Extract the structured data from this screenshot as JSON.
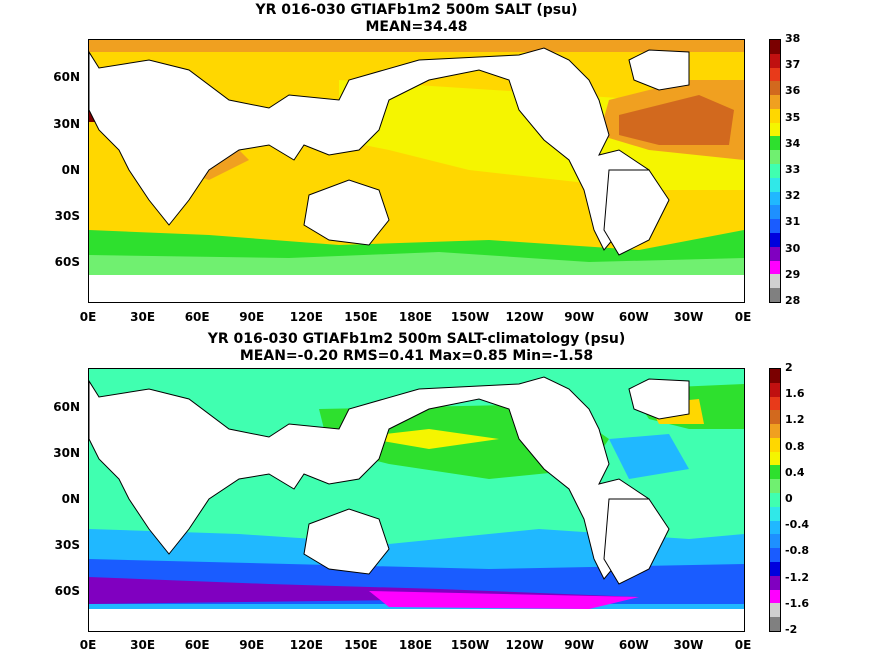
{
  "top": {
    "title_line1": "YR 016-030 GTIAFb1m2 500m SALT (psu)",
    "title_line2": "MEAN=34.48",
    "y_ticks": [
      "60N",
      "30N",
      "0N",
      "30S",
      "60S"
    ],
    "x_ticks": [
      "0E",
      "30E",
      "60E",
      "90E",
      "120E",
      "150E",
      "180E",
      "150W",
      "120W",
      "90W",
      "60W",
      "30W",
      "0E"
    ],
    "colorbar_labels": [
      "38",
      "37",
      "36",
      "35",
      "34",
      "33",
      "32",
      "31",
      "30",
      "29",
      "28"
    ],
    "colorbar_colors": [
      "#7a0000",
      "#c01010",
      "#e83a1a",
      "#d2691e",
      "#f0a020",
      "#ffd700",
      "#f5f500",
      "#2ee02e",
      "#70f070",
      "#40ffb0",
      "#30e8e8",
      "#20b8ff",
      "#1e90ff",
      "#1a5cff",
      "#0000dd",
      "#8000c0",
      "#ff00ff",
      "#d0d0d0",
      "#808080"
    ]
  },
  "bottom": {
    "title_line1": "YR 016-030 GTIAFb1m2 500m SALT-climatology (psu)",
    "title_line2": "MEAN=-0.20   RMS=0.41   Max=0.85   Min=-1.58",
    "y_ticks": [
      "60N",
      "30N",
      "0N",
      "30S",
      "60S"
    ],
    "x_ticks": [
      "0E",
      "30E",
      "60E",
      "90E",
      "120E",
      "150E",
      "180E",
      "150W",
      "120W",
      "90W",
      "60W",
      "30W",
      "0E"
    ],
    "colorbar_labels": [
      "2",
      "1.6",
      "1.2",
      "0.8",
      "0.4",
      "0",
      "-0.4",
      "-0.8",
      "-1.2",
      "-1.6",
      "-2"
    ],
    "colorbar_colors": [
      "#7a0000",
      "#c01010",
      "#e83a1a",
      "#d2691e",
      "#f0a020",
      "#ffd700",
      "#f5f500",
      "#2ee02e",
      "#70f070",
      "#40ffb0",
      "#30e8e8",
      "#20b8ff",
      "#1e90ff",
      "#1a5cff",
      "#0000dd",
      "#8000c0",
      "#ff00ff",
      "#d0d0d0",
      "#808080"
    ]
  },
  "chart_data": [
    {
      "type": "heatmap",
      "title": "YR 016-030 GTIAFb1m2 500m SALT (psu)",
      "subtitle": "MEAN=34.48",
      "variable": "salinity at 500m",
      "units": "psu",
      "colorbar_range": [
        28,
        38
      ],
      "xlim": [
        0,
        360
      ],
      "ylim": [
        -80,
        90
      ],
      "x_ticks": [
        "0E",
        "30E",
        "60E",
        "90E",
        "120E",
        "150E",
        "180E",
        "150W",
        "120W",
        "90W",
        "60W",
        "30W",
        "0E"
      ],
      "y_ticks": [
        "60N",
        "30N",
        "0N",
        "30S",
        "60S"
      ],
      "summary": {
        "mean": 34.48
      }
    },
    {
      "type": "heatmap",
      "title": "YR 016-030 GTIAFb1m2 500m SALT-climatology (psu)",
      "subtitle": "MEAN=-0.20   RMS=0.41   Max=0.85   Min=-1.58",
      "variable": "salinity minus climatology at 500m",
      "units": "psu",
      "colorbar_range": [
        -2,
        2
      ],
      "xlim": [
        0,
        360
      ],
      "ylim": [
        -80,
        90
      ],
      "x_ticks": [
        "0E",
        "30E",
        "60E",
        "90E",
        "120E",
        "150E",
        "180E",
        "150W",
        "120W",
        "90W",
        "60W",
        "30W",
        "0E"
      ],
      "y_ticks": [
        "60N",
        "30N",
        "0N",
        "30S",
        "60S"
      ],
      "summary": {
        "mean": -0.2,
        "rms": 0.41,
        "max": 0.85,
        "min": -1.58
      }
    }
  ]
}
